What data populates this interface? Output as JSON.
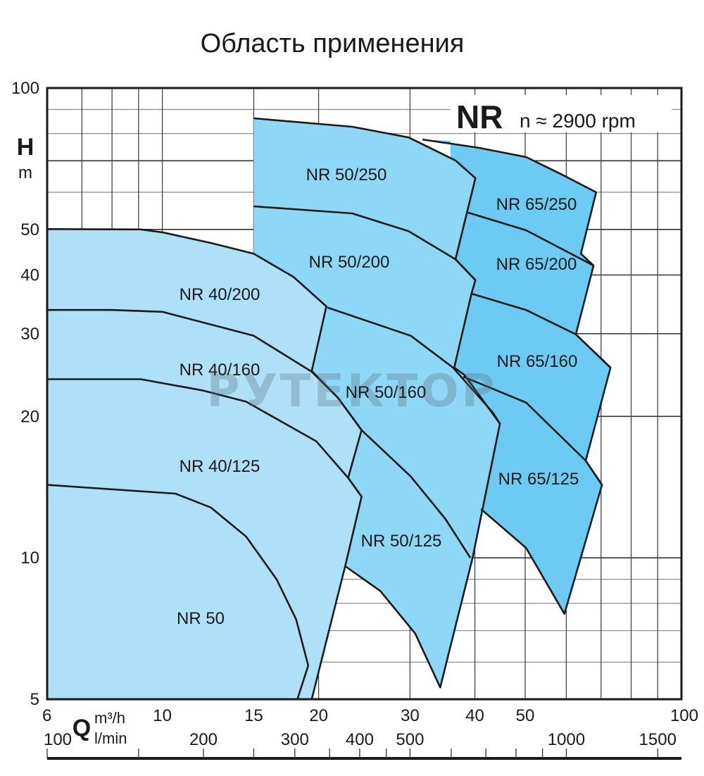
{
  "title": "Область применения",
  "chart_data": {
    "type": "area",
    "series_label": "NR",
    "speed": "n ≈ 2900 rpm",
    "watermark": "РУТЕКТОР",
    "y_axis": {
      "label": "H",
      "unit": "m",
      "scale": "log",
      "range": [
        5,
        100
      ],
      "ticks": [
        100,
        50,
        40,
        30,
        20,
        10,
        5
      ],
      "grid": [
        100,
        90,
        80,
        70,
        60,
        50,
        40,
        30,
        20,
        10,
        9,
        8,
        7,
        6,
        5
      ],
      "major_grid": [
        70,
        50,
        40,
        30,
        20,
        10
      ]
    },
    "x_axis": {
      "label": "Q",
      "unit": "m³/h",
      "scale": "log",
      "range": [
        6,
        100
      ],
      "ticks": [
        6,
        10,
        15,
        20,
        30,
        40,
        50,
        100
      ],
      "grid": [
        7,
        8,
        9,
        10,
        15,
        20,
        30,
        40,
        50,
        60,
        70,
        80,
        90
      ]
    },
    "x2_axis": {
      "unit": "l/min",
      "ticks": [
        100,
        200,
        300,
        400,
        500,
        1000,
        1500
      ],
      "minor_ticks": [
        100,
        150,
        200,
        250,
        300,
        350,
        400,
        450,
        500,
        600,
        700,
        800,
        900,
        1000,
        1500
      ]
    },
    "grid": true,
    "regions": [
      {
        "group": "NR 65",
        "color": "#6dcbf3",
        "outline": [
          [
            31.7,
            77.7
          ],
          [
            40.7,
            74.6
          ],
          [
            50.2,
            71.3
          ],
          [
            58.6,
            65.6
          ],
          [
            68.5,
            60.0
          ],
          [
            64.0,
            44.4
          ],
          [
            67.7,
            41.9
          ],
          [
            62.6,
            29.9
          ],
          [
            73.0,
            25.4
          ],
          [
            65.4,
            16.1
          ],
          [
            70.3,
            14.3
          ],
          [
            59.5,
            7.6
          ],
          [
            50.2,
            10.5
          ],
          [
            41.1,
            12.7
          ]
        ],
        "fill_extra": [
          [
            35.9,
            27.4
          ],
          [
            35.9,
            77.2
          ]
        ]
      },
      {
        "group": "NR 50",
        "color": "#8fd7f6",
        "outline": [
          [
            15,
            86.2
          ],
          [
            23.2,
            82.7
          ],
          [
            29.8,
            78.5
          ],
          [
            36.7,
            70.1
          ],
          [
            40.1,
            64.3
          ],
          [
            36.7,
            43.2
          ],
          [
            40.1,
            39.0
          ],
          [
            39.4,
            36.5
          ],
          [
            36.5,
            25.4
          ],
          [
            38.2,
            24.5
          ],
          [
            44.7,
            19.3
          ],
          [
            39.6,
            10.0
          ],
          [
            34.3,
            5.3
          ],
          [
            30.7,
            6.9
          ],
          [
            26.3,
            8.5
          ],
          [
            22.5,
            9.6
          ]
        ],
        "fill_extra": [
          [
            15,
            9.6
          ]
        ]
      },
      {
        "group": "NR 40",
        "color": "#aee1f8",
        "outline": [
          [
            6,
            50.1
          ],
          [
            9.09,
            50
          ],
          [
            10,
            49.3
          ],
          [
            12.4,
            46.8
          ],
          [
            15,
            44.4
          ],
          [
            17.9,
            39.6
          ],
          [
            20.7,
            34.3
          ],
          [
            19.4,
            25.0
          ],
          [
            21.8,
            21.9
          ],
          [
            24.2,
            18.7
          ],
          [
            22.8,
            14.8
          ],
          [
            24.2,
            13.5
          ],
          [
            22.5,
            9.6
          ],
          [
            19.4,
            5.0
          ]
        ],
        "fill_extra": [
          [
            6,
            5
          ]
        ]
      }
    ],
    "curves": [
      {
        "pump": "NR 40/160",
        "points": [
          [
            6,
            33.7
          ],
          [
            8,
            33.7
          ],
          [
            10,
            33.4
          ],
          [
            15,
            29.7
          ],
          [
            19.4,
            24.9
          ],
          [
            21.8,
            21.9
          ],
          [
            24.2,
            18.7
          ],
          [
            30.1,
            14.9
          ],
          [
            35.1,
            12.1
          ],
          [
            39.2,
            10.0
          ]
        ]
      },
      {
        "pump": "NR 40/125",
        "points": [
          [
            6,
            24.0
          ],
          [
            9.09,
            24.0
          ],
          [
            12.0,
            22.7
          ],
          [
            14.5,
            21.5
          ],
          [
            19.8,
            17.7
          ],
          [
            22.8,
            14.8
          ],
          [
            24.2,
            13.5
          ]
        ]
      },
      {
        "pump": "NR 50",
        "points": [
          [
            6,
            14.3
          ],
          [
            10.6,
            13.7
          ],
          [
            12.4,
            12.8
          ],
          [
            14.5,
            11.1
          ],
          [
            16.6,
            9.0
          ],
          [
            18.1,
            7.4
          ],
          [
            19.1,
            5.9
          ],
          [
            18.2,
            5.0
          ]
        ]
      },
      {
        "pump": "NR 50/200",
        "points": [
          [
            15,
            56.0
          ],
          [
            23.2,
            54.1
          ],
          [
            29.8,
            49.6
          ],
          [
            36.7,
            43.2
          ],
          [
            40.1,
            39.0
          ]
        ]
      },
      {
        "pump": "NR 50/160",
        "points": [
          [
            20.8,
            34.1
          ],
          [
            30.1,
            29.7
          ],
          [
            36.3,
            25.4
          ],
          [
            43.3,
            20.4
          ],
          [
            44.7,
            19.3
          ]
        ]
      },
      {
        "pump": "NR 65/200",
        "points": [
          [
            38.8,
            54.3
          ],
          [
            50.2,
            49.8
          ],
          [
            67.7,
            41.9
          ]
        ]
      },
      {
        "pump": "NR 65/160",
        "points": [
          [
            39.4,
            36.5
          ],
          [
            50.2,
            33.7
          ],
          [
            62.6,
            29.9
          ],
          [
            73.0,
            25.4
          ]
        ]
      },
      {
        "pump": "NR 65/125",
        "points": [
          [
            38.0,
            24.3
          ],
          [
            50.2,
            21.4
          ],
          [
            65.4,
            16.1
          ],
          [
            70.3,
            14.3
          ]
        ]
      }
    ],
    "labels": [
      {
        "text": "NR 50/250",
        "color": "#1a1a1a"
      },
      {
        "text": "NR 50/200",
        "color": "#1a1a1a"
      },
      {
        "text": "NR 40/200",
        "color": "#1a1a1a"
      },
      {
        "text": "NR 40/160",
        "color": "#1a1a1a"
      },
      {
        "text": "NR 50/160",
        "color": "#1a1a1a"
      },
      {
        "text": "NR 40/125",
        "color": "#1a1a1a"
      },
      {
        "text": "NR 50/125",
        "color": "#1a1a1a"
      },
      {
        "text": "NR 50",
        "color": "#e8262a"
      },
      {
        "text": "NR 65/250",
        "color": "#1a1a1a"
      },
      {
        "text": "NR 65/200",
        "color": "#1a1a1a"
      },
      {
        "text": "NR 65/160",
        "color": "#1a1a1a"
      },
      {
        "text": "NR 65/125",
        "color": "#1a1a1a"
      }
    ]
  }
}
